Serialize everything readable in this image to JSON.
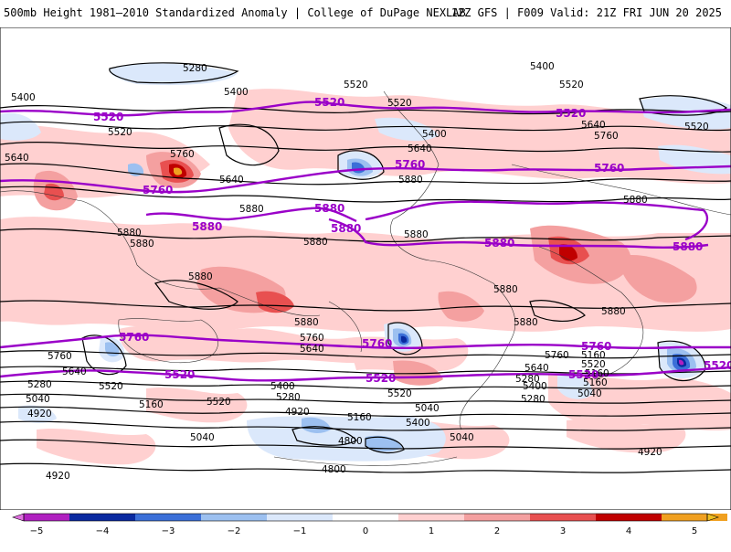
{
  "header": {
    "title_left": "500mb Height 1981–2010 Standardized Anomaly | College of DuPage NEXLAB",
    "title_right": "12Z GFS | F009 Valid: 21Z FRI JUN 20 2025"
  },
  "colors": {
    "pos1": "#ffd0d0",
    "pos2": "#f4a0a0",
    "pos3": "#e85050",
    "pos4": "#c00000",
    "pos5": "#f0a020",
    "neg1": "#dbe8fb",
    "neg2": "#9cc0f0",
    "neg3": "#3b6fd8",
    "neg4": "#0a2aa0",
    "neg5": "#b020c0",
    "contour_black": "#000000",
    "contour_purple": "#9a00c8"
  },
  "contour_labels": {
    "black": [
      "5280",
      "5400",
      "5520",
      "5400",
      "5520",
      "5520",
      "5400",
      "5640",
      "5760",
      "5520",
      "5640",
      "5400",
      "5640",
      "5640",
      "5760",
      "5880",
      "5880",
      "5880",
      "5880",
      "5880",
      "5880",
      "5880",
      "5880",
      "5880",
      "5880",
      "5880",
      "5880",
      "5760",
      "5640",
      "5520",
      "5400",
      "5280",
      "5760",
      "5640",
      "5520",
      "5520",
      "5400",
      "5280",
      "5160",
      "5040",
      "5160",
      "5040",
      "4920",
      "4920",
      "5040",
      "5160",
      "4920",
      "4800",
      "4800",
      "5280",
      "5040",
      "5160",
      "4920",
      "5760",
      "5640",
      "5520",
      "5400",
      "5280",
      "5040",
      "5160",
      "5520"
    ],
    "purple": [
      "5520",
      "5520",
      "5520",
      "5760",
      "5760",
      "5760",
      "5880",
      "5880",
      "5880",
      "5880",
      "5880",
      "5760",
      "5760",
      "5760",
      "5520",
      "5520",
      "5520",
      "5520"
    ]
  },
  "colorbar": {
    "ticks": [
      "−5",
      "−4",
      "−3",
      "−2",
      "−1",
      "0",
      "1",
      "2",
      "3",
      "4",
      "5"
    ]
  }
}
